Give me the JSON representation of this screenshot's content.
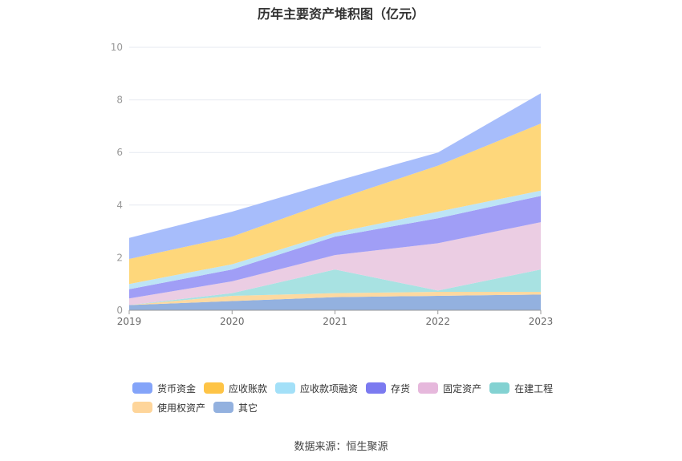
{
  "chart_data": {
    "type": "area",
    "stacked": true,
    "title": "历年主要资产堆积图（亿元）",
    "x": [
      "2019",
      "2020",
      "2021",
      "2022",
      "2023"
    ],
    "ylim": [
      0,
      10
    ],
    "yticks": [
      0,
      2,
      4,
      6,
      8,
      10
    ],
    "grid": true,
    "legend_position": "bottom",
    "series": [
      {
        "name": "其它",
        "color": "#93b1df",
        "values": [
          0.2,
          0.35,
          0.5,
          0.55,
          0.6
        ]
      },
      {
        "name": "使用权资产",
        "color": "#fdd9a0",
        "values": [
          0.0,
          0.2,
          0.15,
          0.15,
          0.1
        ]
      },
      {
        "name": "在建工程",
        "color": "#a8e2e2",
        "values": [
          0.0,
          0.1,
          0.9,
          0.05,
          0.85
        ]
      },
      {
        "name": "固定资产",
        "color": "#ebcde3",
        "values": [
          0.25,
          0.45,
          0.55,
          1.8,
          1.8
        ]
      },
      {
        "name": "存货",
        "color": "#a09ef6",
        "values": [
          0.35,
          0.45,
          0.7,
          0.95,
          1.0
        ]
      },
      {
        "name": "应收款项融资",
        "color": "#bde4f6",
        "values": [
          0.2,
          0.2,
          0.15,
          0.25,
          0.2
        ]
      },
      {
        "name": "应收账款",
        "color": "#fed77b",
        "values": [
          0.95,
          1.05,
          1.25,
          1.75,
          2.55
        ]
      },
      {
        "name": "货币资金",
        "color": "#a7bdfb",
        "values": [
          0.8,
          0.95,
          0.7,
          0.5,
          1.15
        ]
      }
    ]
  },
  "legend": [
    {
      "name": "货币资金",
      "color": "#84a4f9"
    },
    {
      "name": "应收账款",
      "color": "#fec446"
    },
    {
      "name": "应收款项融资",
      "color": "#a3e0f8"
    },
    {
      "name": "存货",
      "color": "#7b7af0"
    },
    {
      "name": "固定资产",
      "color": "#e6b8dc"
    },
    {
      "name": "在建工程",
      "color": "#83d2d2"
    },
    {
      "name": "使用权资产",
      "color": "#fed59a"
    },
    {
      "name": "其它",
      "color": "#93b1df"
    }
  ],
  "source": "数据来源：恒生聚源"
}
